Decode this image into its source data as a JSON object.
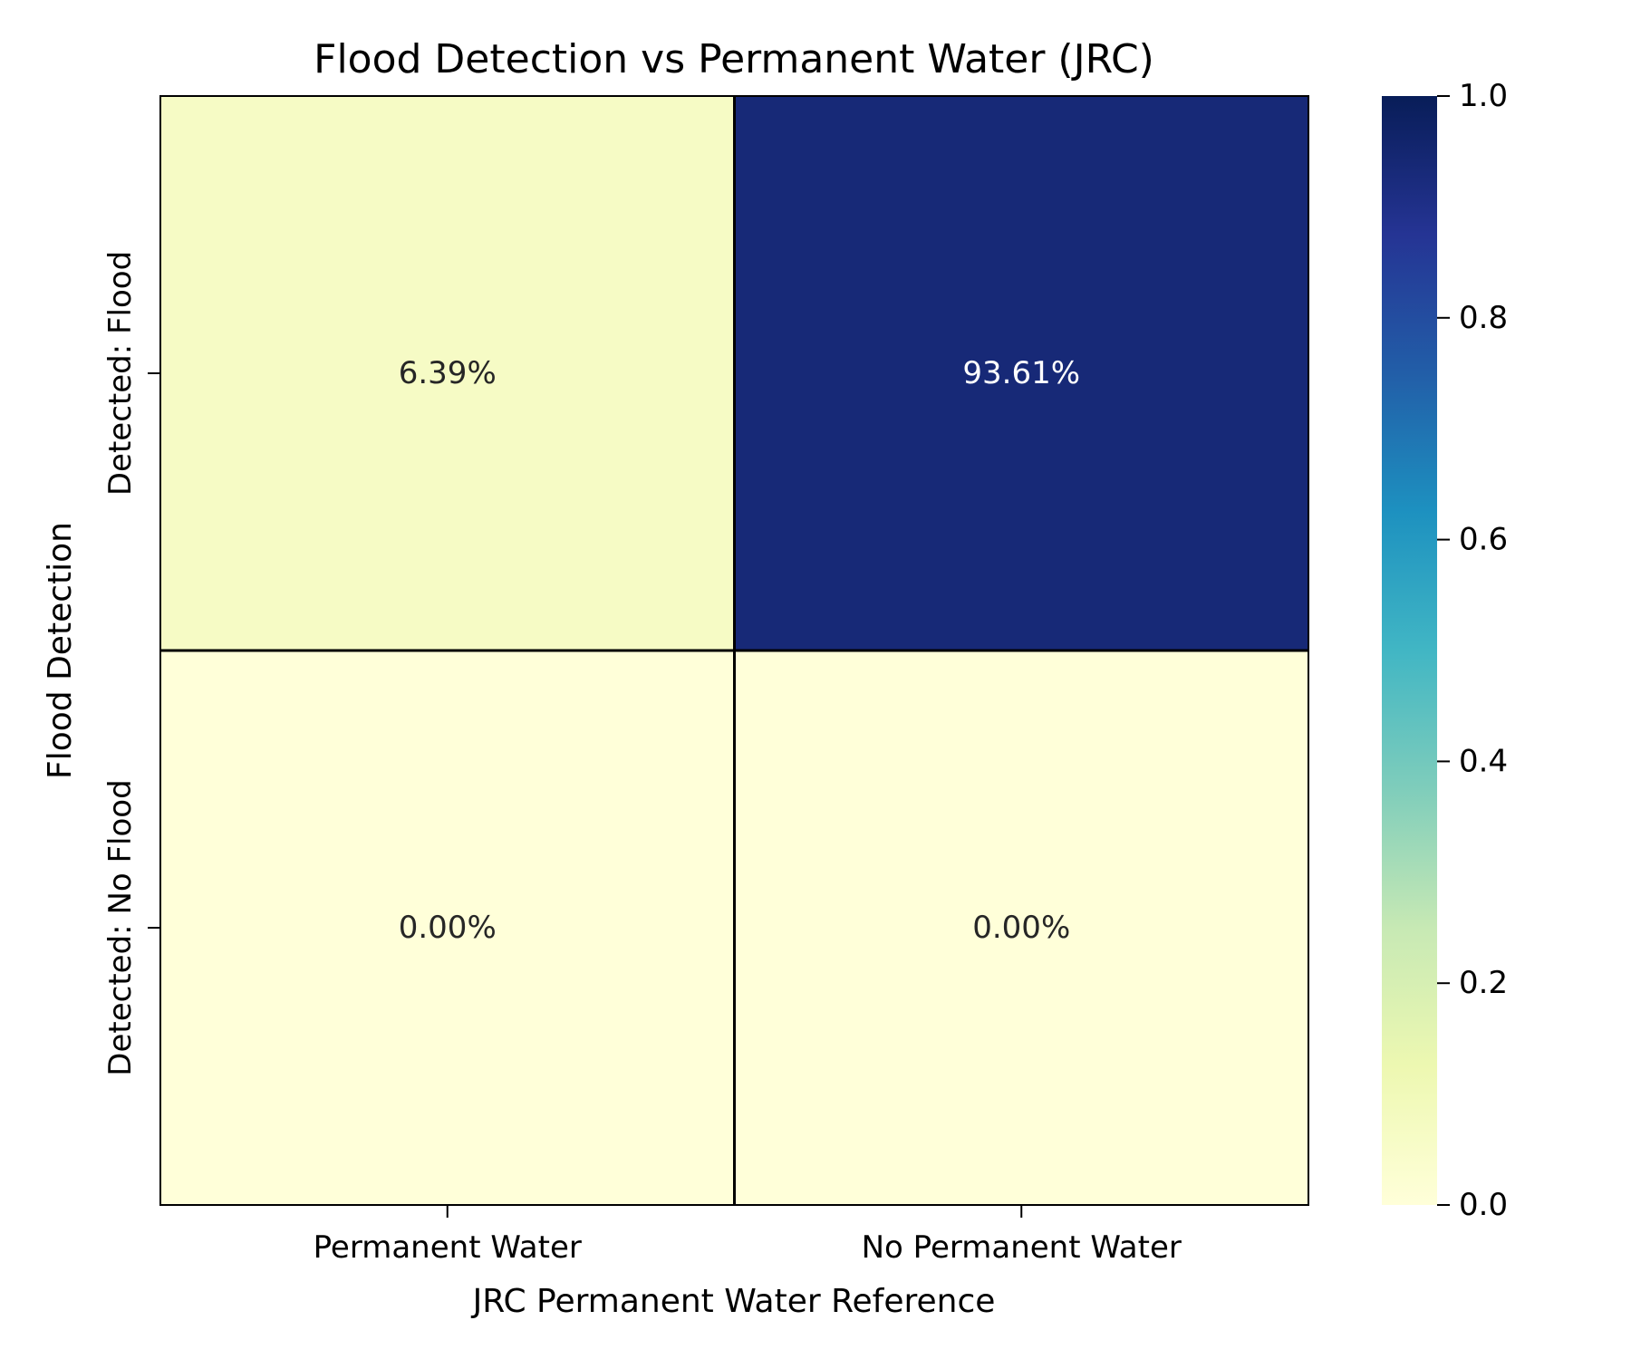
{
  "chart_data": {
    "type": "heatmap",
    "title": "Flood Detection vs Permanent Water (JRC)",
    "xlabel": "JRC Permanent Water Reference",
    "ylabel": "Flood Detection",
    "x_categories": [
      "Permanent Water",
      "No Permanent Water"
    ],
    "y_categories": [
      "Detected: Flood",
      "Detected: No Flood"
    ],
    "values": [
      [
        0.0639,
        0.9361
      ],
      [
        0.0,
        0.0
      ]
    ],
    "annotations": [
      [
        "6.39%",
        "93.61%"
      ],
      [
        "0.00%",
        "0.00%"
      ]
    ],
    "colorbar": {
      "range": [
        0.0,
        1.0
      ],
      "ticks": [
        "0.0",
        "0.2",
        "0.4",
        "0.6",
        "0.8",
        "1.0"
      ],
      "colormap": "YlGnBu"
    },
    "colors": {
      "colormap_stops": [
        "#ffffd9",
        "#edf8b1",
        "#c7e9b4",
        "#7fcdbb",
        "#41b6c4",
        "#1d91c0",
        "#225ea8",
        "#253494",
        "#081d58"
      ]
    },
    "grid": false
  }
}
